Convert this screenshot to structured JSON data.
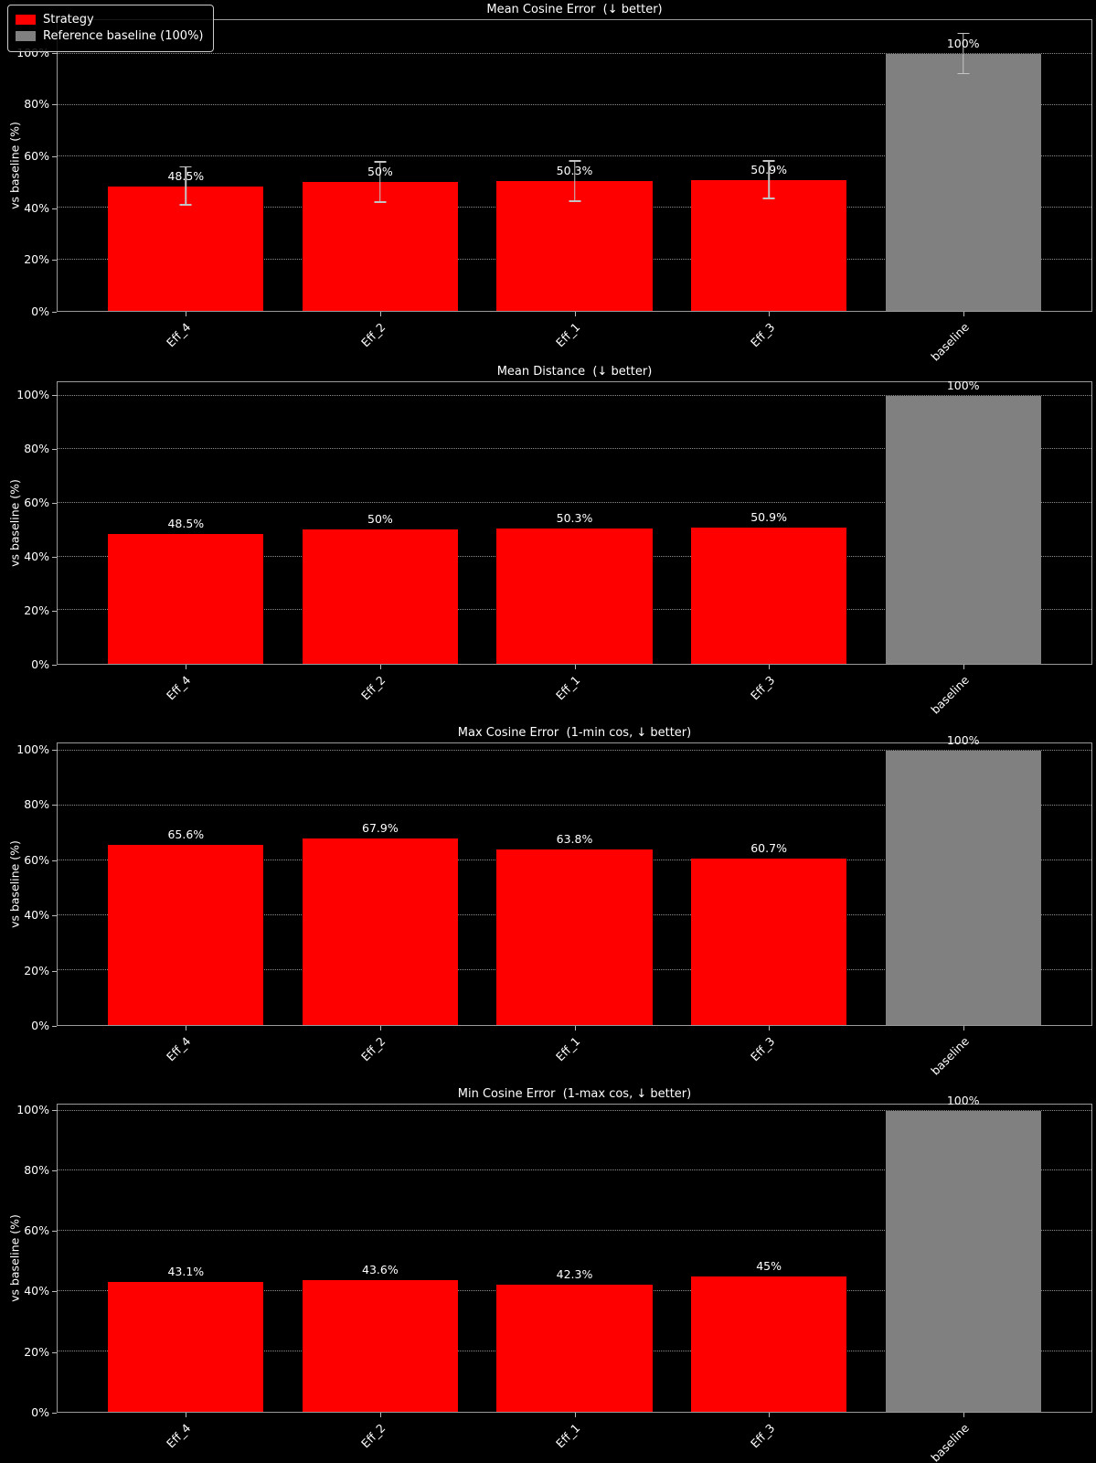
{
  "figure": {
    "background_color": "#000000",
    "text_color": "#ffffff",
    "strategy_color": "#ff0000",
    "baseline_color": "#808080"
  },
  "legend": {
    "items": [
      {
        "label": "Strategy",
        "color": "#ff0000"
      },
      {
        "label": "Reference baseline (100%)",
        "color": "#808080"
      }
    ]
  },
  "chart_data": [
    {
      "type": "bar",
      "title": "Mean Cosine Error  (↓ better)",
      "ylabel": "vs baseline (%)",
      "categories": [
        "Eff_4",
        "Eff_2",
        "Eff_1",
        "Eff_3",
        "baseline"
      ],
      "values": [
        48.5,
        50,
        50.3,
        50.9,
        100
      ],
      "value_labels": [
        "48.5%",
        "50%",
        "50.3%",
        "50.9%",
        "100%"
      ],
      "errors": [
        7.5,
        8,
        8,
        7.5,
        8
      ],
      "bar_colors": [
        "#ff0000",
        "#ff0000",
        "#ff0000",
        "#ff0000",
        "#808080"
      ],
      "ytick_values": [
        0,
        20,
        40,
        60,
        80,
        100
      ],
      "ytick_labels": [
        "0%",
        "20%",
        "40%",
        "60%",
        "80%",
        "100%"
      ],
      "ylim": [
        0,
        113
      ],
      "grid": "dotted horizontal"
    },
    {
      "type": "bar",
      "title": "Mean Distance  (↓ better)",
      "ylabel": "vs baseline (%)",
      "categories": [
        "Eff_4",
        "Eff_2",
        "Eff_1",
        "Eff_3",
        "baseline"
      ],
      "values": [
        48.5,
        50,
        50.3,
        50.9,
        100
      ],
      "value_labels": [
        "48.5%",
        "50%",
        "50.3%",
        "50.9%",
        "100%"
      ],
      "errors": null,
      "bar_colors": [
        "#ff0000",
        "#ff0000",
        "#ff0000",
        "#ff0000",
        "#808080"
      ],
      "ytick_values": [
        0,
        20,
        40,
        60,
        80,
        100
      ],
      "ytick_labels": [
        "0%",
        "20%",
        "40%",
        "60%",
        "80%",
        "100%"
      ],
      "ylim": [
        0,
        105
      ],
      "grid": "dotted horizontal"
    },
    {
      "type": "bar",
      "title": "Max Cosine Error  (1-min cos, ↓ better)",
      "ylabel": "vs baseline (%)",
      "categories": [
        "Eff_4",
        "Eff_2",
        "Eff_1",
        "Eff_3",
        "baseline"
      ],
      "values": [
        65.6,
        67.9,
        63.8,
        60.7,
        100
      ],
      "value_labels": [
        "65.6%",
        "67.9%",
        "63.8%",
        "60.7%",
        "100%"
      ],
      "errors": null,
      "bar_colors": [
        "#ff0000",
        "#ff0000",
        "#ff0000",
        "#ff0000",
        "#808080"
      ],
      "ytick_values": [
        0,
        20,
        40,
        60,
        80,
        100
      ],
      "ytick_labels": [
        "0%",
        "20%",
        "40%",
        "60%",
        "80%",
        "100%"
      ],
      "ylim": [
        0,
        102.5
      ],
      "grid": "dotted horizontal"
    },
    {
      "type": "bar",
      "title": "Min Cosine Error  (1-max cos, ↓ better)",
      "ylabel": "vs baseline (%)",
      "categories": [
        "Eff_4",
        "Eff_2",
        "Eff_1",
        "Eff_3",
        "baseline"
      ],
      "values": [
        43.1,
        43.6,
        42.3,
        45,
        100
      ],
      "value_labels": [
        "43.1%",
        "43.6%",
        "42.3%",
        "45%",
        "100%"
      ],
      "errors": null,
      "bar_colors": [
        "#ff0000",
        "#ff0000",
        "#ff0000",
        "#ff0000",
        "#808080"
      ],
      "ytick_values": [
        0,
        20,
        40,
        60,
        80,
        100
      ],
      "ytick_labels": [
        "0%",
        "20%",
        "40%",
        "60%",
        "80%",
        "100%"
      ],
      "ylim": [
        0,
        102
      ],
      "grid": "dotted horizontal"
    }
  ]
}
